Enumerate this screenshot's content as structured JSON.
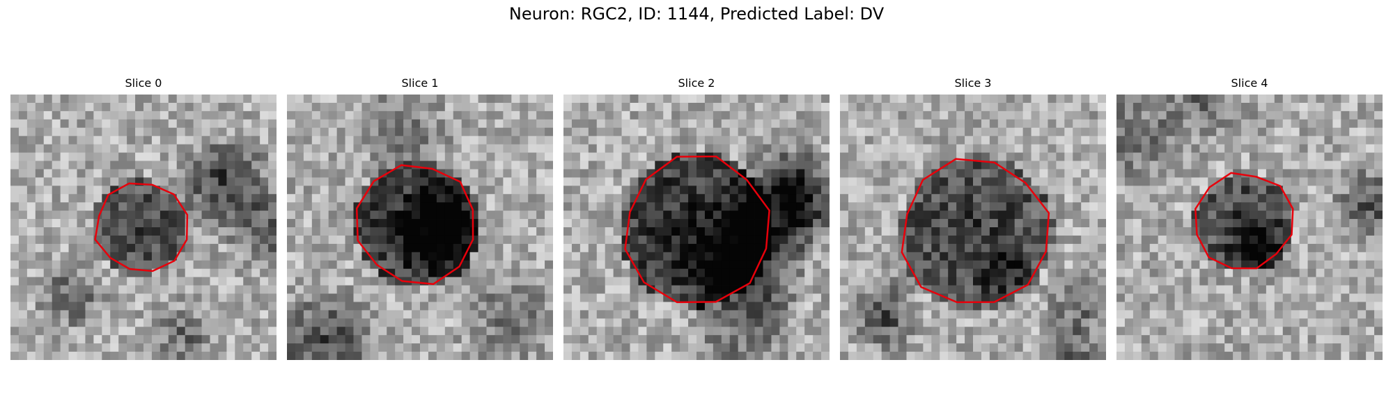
{
  "figure": {
    "title": "Neuron: RGC2, ID: 1144, Predicted Label: DV"
  },
  "panels": [
    {
      "title": "Slice 0",
      "seed": 11
    },
    {
      "title": "Slice 1",
      "seed": 23
    },
    {
      "title": "Slice 2",
      "seed": 37
    },
    {
      "title": "Slice 3",
      "seed": 41
    },
    {
      "title": "Slice 4",
      "seed": 53
    }
  ],
  "contour_color": "#e8000b"
}
